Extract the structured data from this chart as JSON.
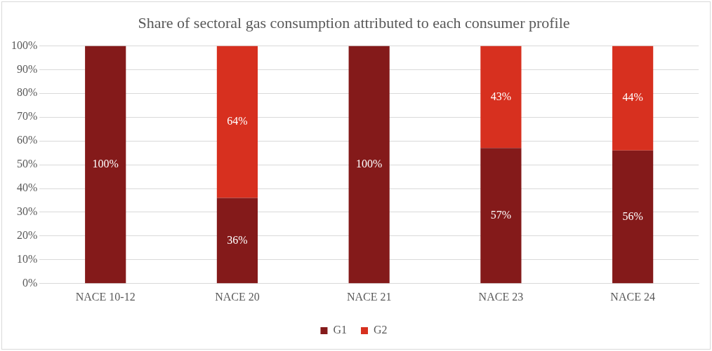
{
  "chart_data": {
    "type": "bar",
    "title": "Share of sectoral gas consumption attributed to each consumer profile",
    "categories": [
      "NACE 10-12",
      "NACE 20",
      "NACE 21",
      "NACE 23",
      "NACE 24"
    ],
    "series": [
      {
        "name": "G1",
        "color": "#841a1a",
        "values": [
          100,
          36,
          100,
          57,
          56
        ],
        "value_labels": [
          "100%",
          "36%",
          "100%",
          "57%",
          "56%"
        ]
      },
      {
        "name": "G2",
        "color": "#d7301f",
        "values": [
          0,
          64,
          0,
          43,
          44
        ],
        "value_labels": [
          null,
          "64%",
          null,
          "43%",
          "44%"
        ]
      }
    ],
    "stacked": true,
    "ylim": [
      0,
      100
    ],
    "yticks": [
      {
        "value": 0,
        "label": "0%"
      },
      {
        "value": 10,
        "label": "10%"
      },
      {
        "value": 20,
        "label": "20%"
      },
      {
        "value": 30,
        "label": "30%"
      },
      {
        "value": 40,
        "label": "40%"
      },
      {
        "value": 50,
        "label": "50%"
      },
      {
        "value": 60,
        "label": "60%"
      },
      {
        "value": 70,
        "label": "70%"
      },
      {
        "value": 80,
        "label": "80%"
      },
      {
        "value": 90,
        "label": "90%"
      },
      {
        "value": 100,
        "label": "100%"
      }
    ],
    "grid": "y",
    "legend": "bottom"
  }
}
